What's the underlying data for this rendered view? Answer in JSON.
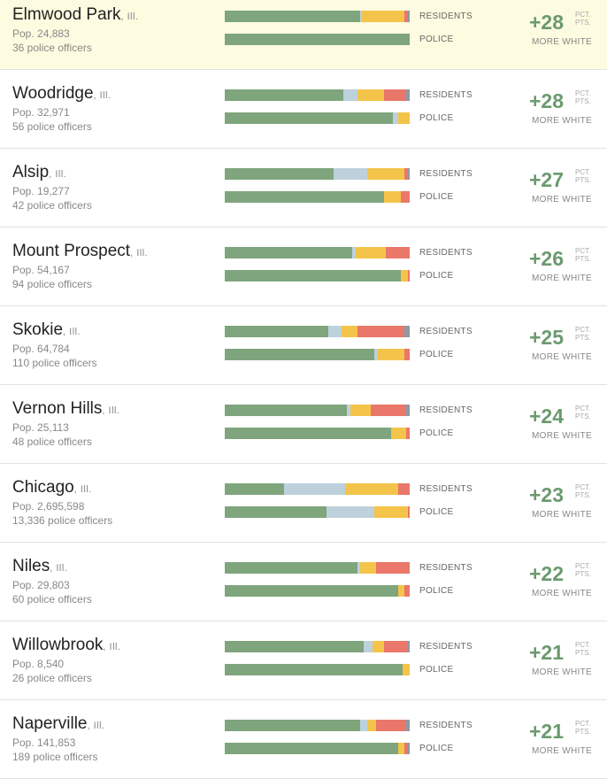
{
  "colors": {
    "white": "#7fa57c",
    "black": "#bdd1dc",
    "hispanic": "#f4c44a",
    "asian": "#e9776a",
    "other": "#8d9aa4",
    "highlight": "#fdfbe0",
    "accent": "#6b9a6e"
  },
  "labels": {
    "residents": "RESIDENTS",
    "police": "POLICE",
    "pct": "PCT.",
    "pts": "PTS.",
    "more_white": "MORE WHITE"
  },
  "chart_data": {
    "type": "bar",
    "series_keys": [
      "white",
      "black",
      "hispanic",
      "asian",
      "other"
    ],
    "rows": [
      {
        "city": "Elmwood Park",
        "state": "Ill.",
        "pop": "Pop. 24,883",
        "officers": "36 police officers",
        "diff": "+28",
        "residents": [
          73,
          1,
          23,
          2,
          1
        ],
        "police": [
          100,
          0,
          0,
          0,
          0
        ]
      },
      {
        "city": "Woodridge",
        "state": "Ill.",
        "pop": "Pop. 32,971",
        "officers": "56 police officers",
        "diff": "+28",
        "residents": [
          64,
          8,
          14,
          12,
          2
        ],
        "police": [
          91,
          3,
          6,
          0,
          0
        ]
      },
      {
        "city": "Alsip",
        "state": "Ill.",
        "pop": "Pop. 19,277",
        "officers": "42 police officers",
        "diff": "+27",
        "residents": [
          59,
          18,
          20,
          2,
          1
        ],
        "police": [
          86,
          0,
          9,
          5,
          0
        ]
      },
      {
        "city": "Mount Prospect",
        "state": "Ill.",
        "pop": "Pop. 54,167",
        "officers": "94 police officers",
        "diff": "+26",
        "residents": [
          69,
          2,
          16,
          13,
          0
        ],
        "police": [
          95,
          0,
          4,
          1,
          0
        ]
      },
      {
        "city": "Skokie",
        "state": "Ill.",
        "pop": "Pop. 64,784",
        "officers": "110 police officers",
        "diff": "+25",
        "residents": [
          56,
          7,
          9,
          25,
          3
        ],
        "police": [
          81,
          2,
          14,
          3,
          0
        ]
      },
      {
        "city": "Vernon Hills",
        "state": "Ill.",
        "pop": "Pop. 25,113",
        "officers": "48 police officers",
        "diff": "+24",
        "residents": [
          66,
          2,
          11,
          19,
          2
        ],
        "police": [
          90,
          0,
          8,
          2,
          0
        ]
      },
      {
        "city": "Chicago",
        "state": "Ill.",
        "pop": "Pop. 2,695,598",
        "officers": "13,336 police officers",
        "diff": "+23",
        "residents": [
          32,
          33,
          29,
          6,
          0
        ],
        "police": [
          55,
          26,
          18,
          1,
          0
        ]
      },
      {
        "city": "Niles",
        "state": "Ill.",
        "pop": "Pop. 29,803",
        "officers": "60 police officers",
        "diff": "+22",
        "residents": [
          72,
          1,
          9,
          18,
          0
        ],
        "police": [
          94,
          0,
          3,
          3,
          0
        ]
      },
      {
        "city": "Willowbrook",
        "state": "Ill.",
        "pop": "Pop. 8,540",
        "officers": "26 police officers",
        "diff": "+21",
        "residents": [
          75,
          5,
          6,
          13,
          1
        ],
        "police": [
          96,
          0,
          4,
          0,
          0
        ]
      },
      {
        "city": "Naperville",
        "state": "Ill.",
        "pop": "Pop. 141,853",
        "officers": "189 police officers",
        "diff": "+21",
        "residents": [
          73,
          4,
          5,
          16,
          2
        ],
        "police": [
          94,
          0,
          3,
          2,
          1
        ]
      }
    ]
  }
}
